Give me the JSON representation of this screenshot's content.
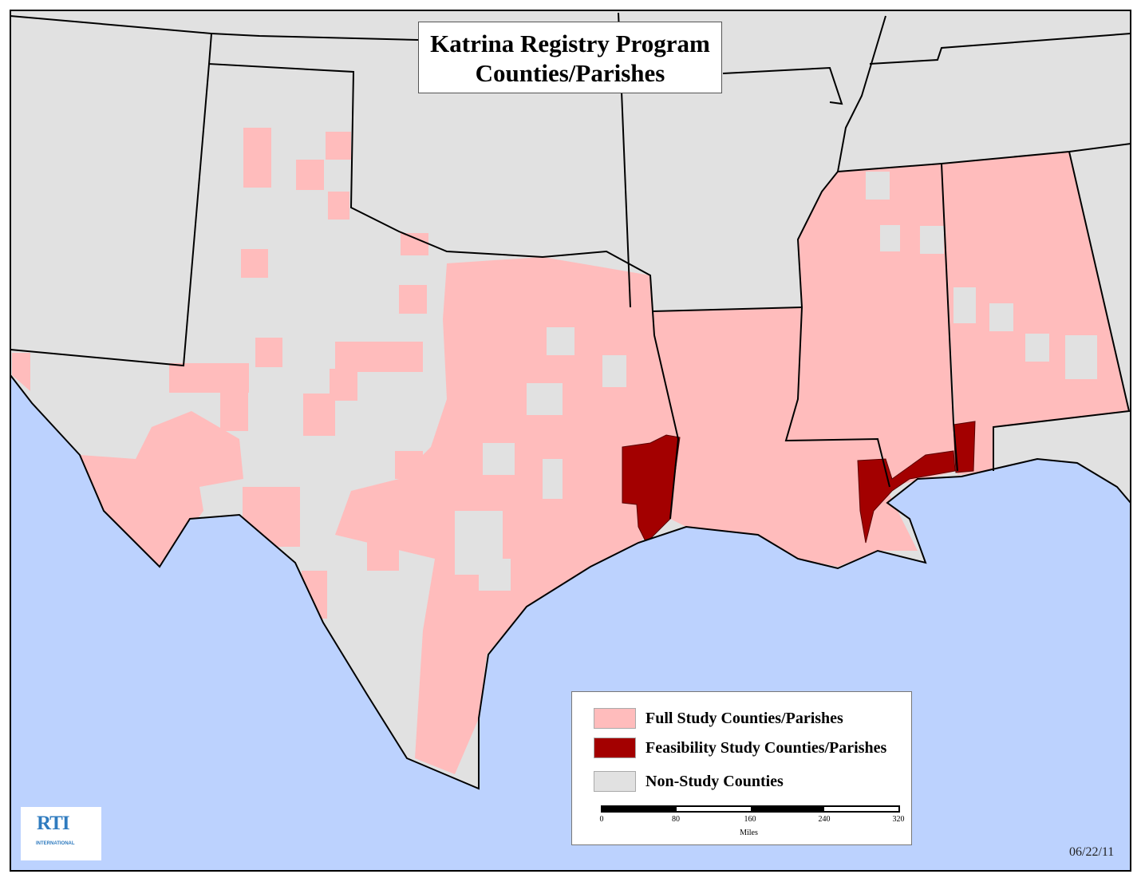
{
  "title": {
    "line1": "Katrina Registry Program",
    "line2": "Counties/Parishes"
  },
  "colors": {
    "full_study": "#ffbcbc",
    "feasibility_study": "#a30000",
    "non_study": "#e1e1e1",
    "water": "#bcd2fe",
    "border": "#000000"
  },
  "legend": {
    "items": [
      {
        "label": "Full Study Counties/Parishes",
        "color": "#ffbcbc"
      },
      {
        "label": "Feasibility Study Counties/Parishes",
        "color": "#a30000"
      },
      {
        "label": "Non-Study Counties",
        "color": "#e1e1e1"
      }
    ],
    "scale_ticks": [
      "0",
      "80",
      "160",
      "240",
      "320"
    ],
    "scale_units": "Miles"
  },
  "logo": {
    "text": "RTI",
    "subtext": "INTERNATIONAL"
  },
  "date": "06/22/11"
}
